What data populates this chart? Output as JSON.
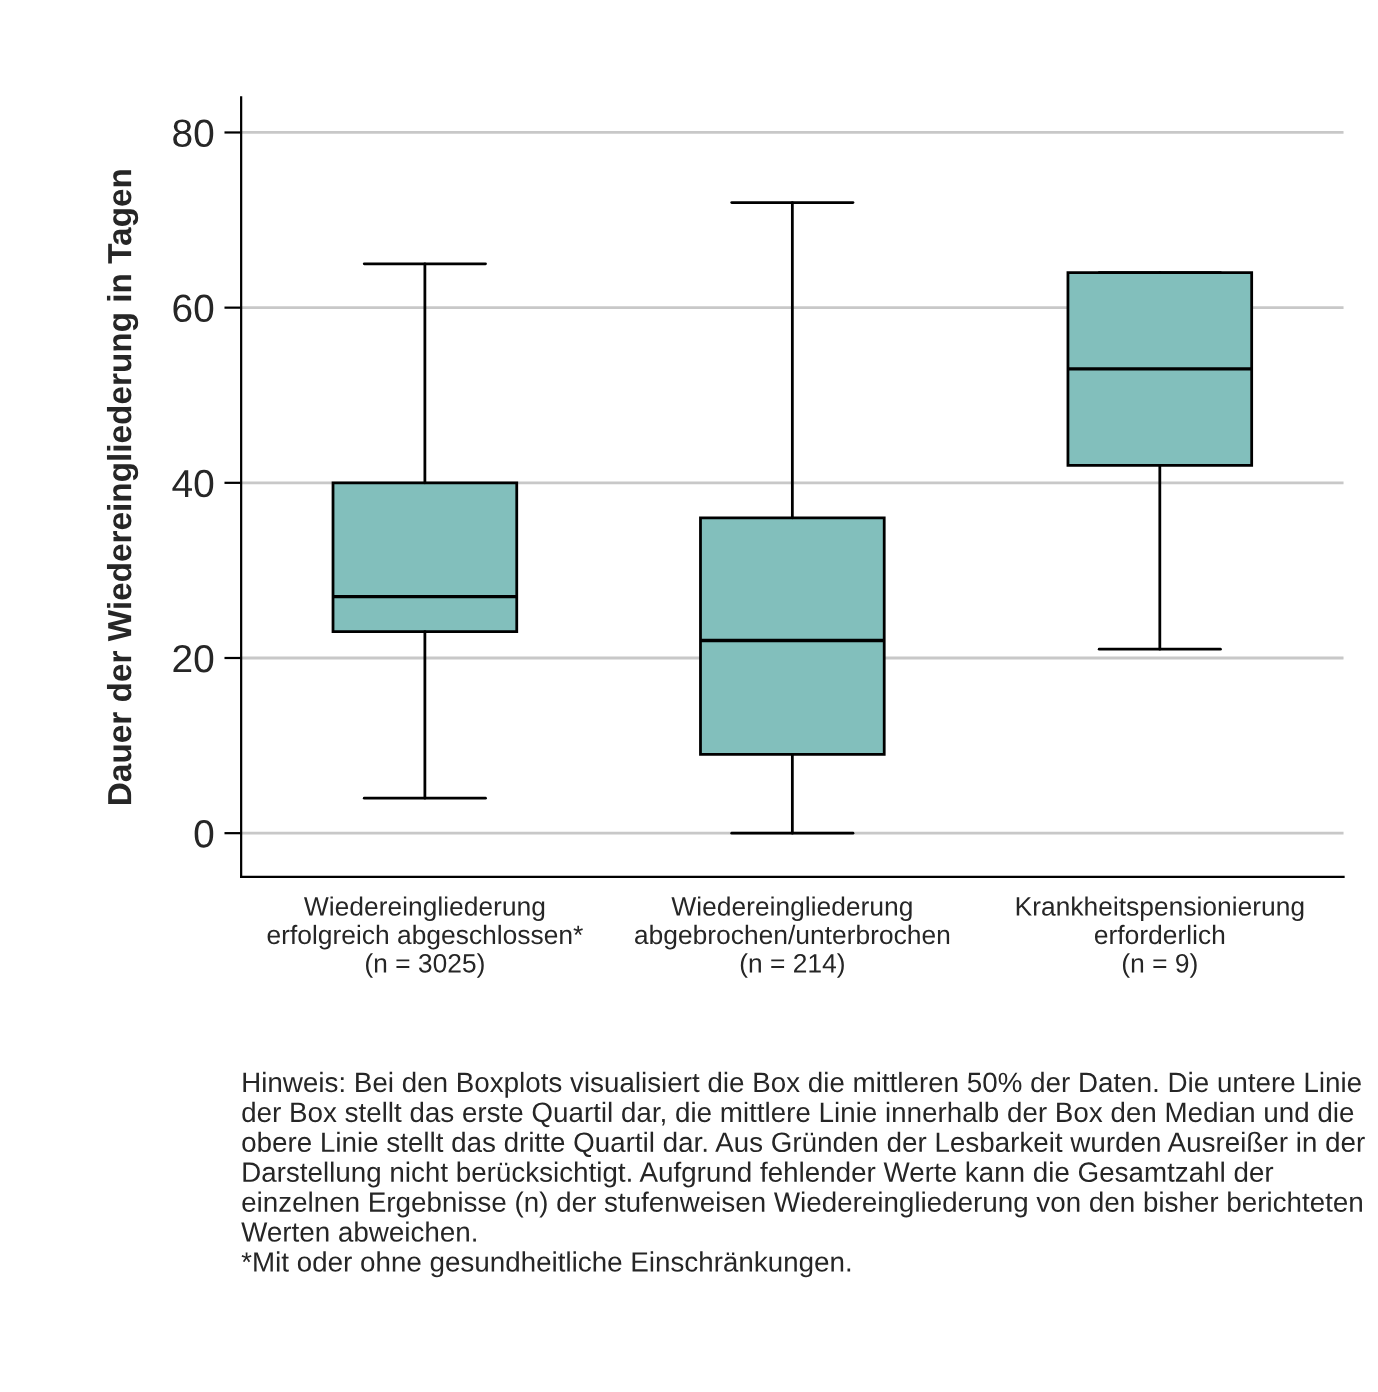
{
  "chart_data": {
    "type": "box",
    "ylabel": "Dauer der Wiedereingliederung in Tagen",
    "categories": [
      "Wiedereingliederung\nerfolgreich abgeschlossen*\n(n = 3025)",
      "Wiedereingliederung\nabgebrochen/unterbrochen\n(n = 214)",
      "Krankheitspensionierung\nerforderlich\n(n = 9)"
    ],
    "boxes": [
      {
        "low": 4,
        "q1": 23,
        "median": 27,
        "q3": 40,
        "high": 65
      },
      {
        "low": 0,
        "q1": 9,
        "median": 22,
        "q3": 36,
        "high": 72
      },
      {
        "low": 21,
        "q1": 42,
        "median": 53,
        "q3": 64,
        "high": 64
      }
    ],
    "color": "#82bfbc",
    "ylim": [
      -5,
      84
    ],
    "yticks": [
      0,
      20,
      40,
      60,
      80
    ],
    "grid": "y",
    "annotations": [
      "Hinweis: Bei den Boxplots visualisiert die Box die mittleren 50% der Daten. Die untere Linie der Box stellt das erste Quartil dar, die mittlere Linie innerhalb der Box den Median und die obere Linie stellt das dritte Quartil dar. Aus Gründen der Lesbarkeit wurden Ausreißer in der Darstellung nicht berücksichtigt. Aufgrund fehlender Werte kann die Gesamtzahl der einzelnen Ergebnisse (n) der stufenweisen Wiedereingliederung von den bisher berichteten Werten abweichen.\n*Mit oder ohne gesundheitliche Einschränkungen."
    ]
  }
}
